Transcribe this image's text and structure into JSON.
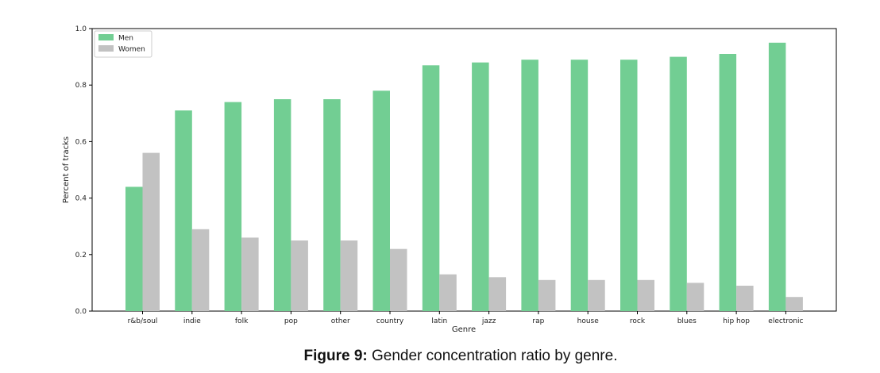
{
  "figure": {
    "caption_label": "Figure 9:",
    "caption_text": " Gender concentration ratio by genre."
  },
  "colors": {
    "men": "#72ce93",
    "women": "#c2c2c2",
    "axis": "#000000"
  },
  "chart_data": {
    "type": "bar",
    "xlabel": "Genre",
    "ylabel": "Percent of tracks",
    "ylim": [
      0,
      1.0
    ],
    "yticks": [
      0.0,
      0.2,
      0.4,
      0.6,
      0.8,
      1.0
    ],
    "ytick_labels": [
      "0.0",
      "0.2",
      "0.4",
      "0.6",
      "0.8",
      "1.0"
    ],
    "grid": false,
    "legend_position": "top-left",
    "categories": [
      "r&b/soul",
      "indie",
      "folk",
      "pop",
      "other",
      "country",
      "latin",
      "jazz",
      "rap",
      "house",
      "rock",
      "blues",
      "hip hop",
      "electronic"
    ],
    "series": [
      {
        "name": "Men",
        "color": "#72ce93",
        "values": [
          0.44,
          0.71,
          0.74,
          0.75,
          0.75,
          0.78,
          0.87,
          0.88,
          0.89,
          0.89,
          0.89,
          0.9,
          0.91,
          0.95
        ]
      },
      {
        "name": "Women",
        "color": "#c2c2c2",
        "values": [
          0.56,
          0.29,
          0.26,
          0.25,
          0.25,
          0.22,
          0.13,
          0.12,
          0.11,
          0.11,
          0.11,
          0.1,
          0.09,
          0.05
        ]
      }
    ]
  }
}
